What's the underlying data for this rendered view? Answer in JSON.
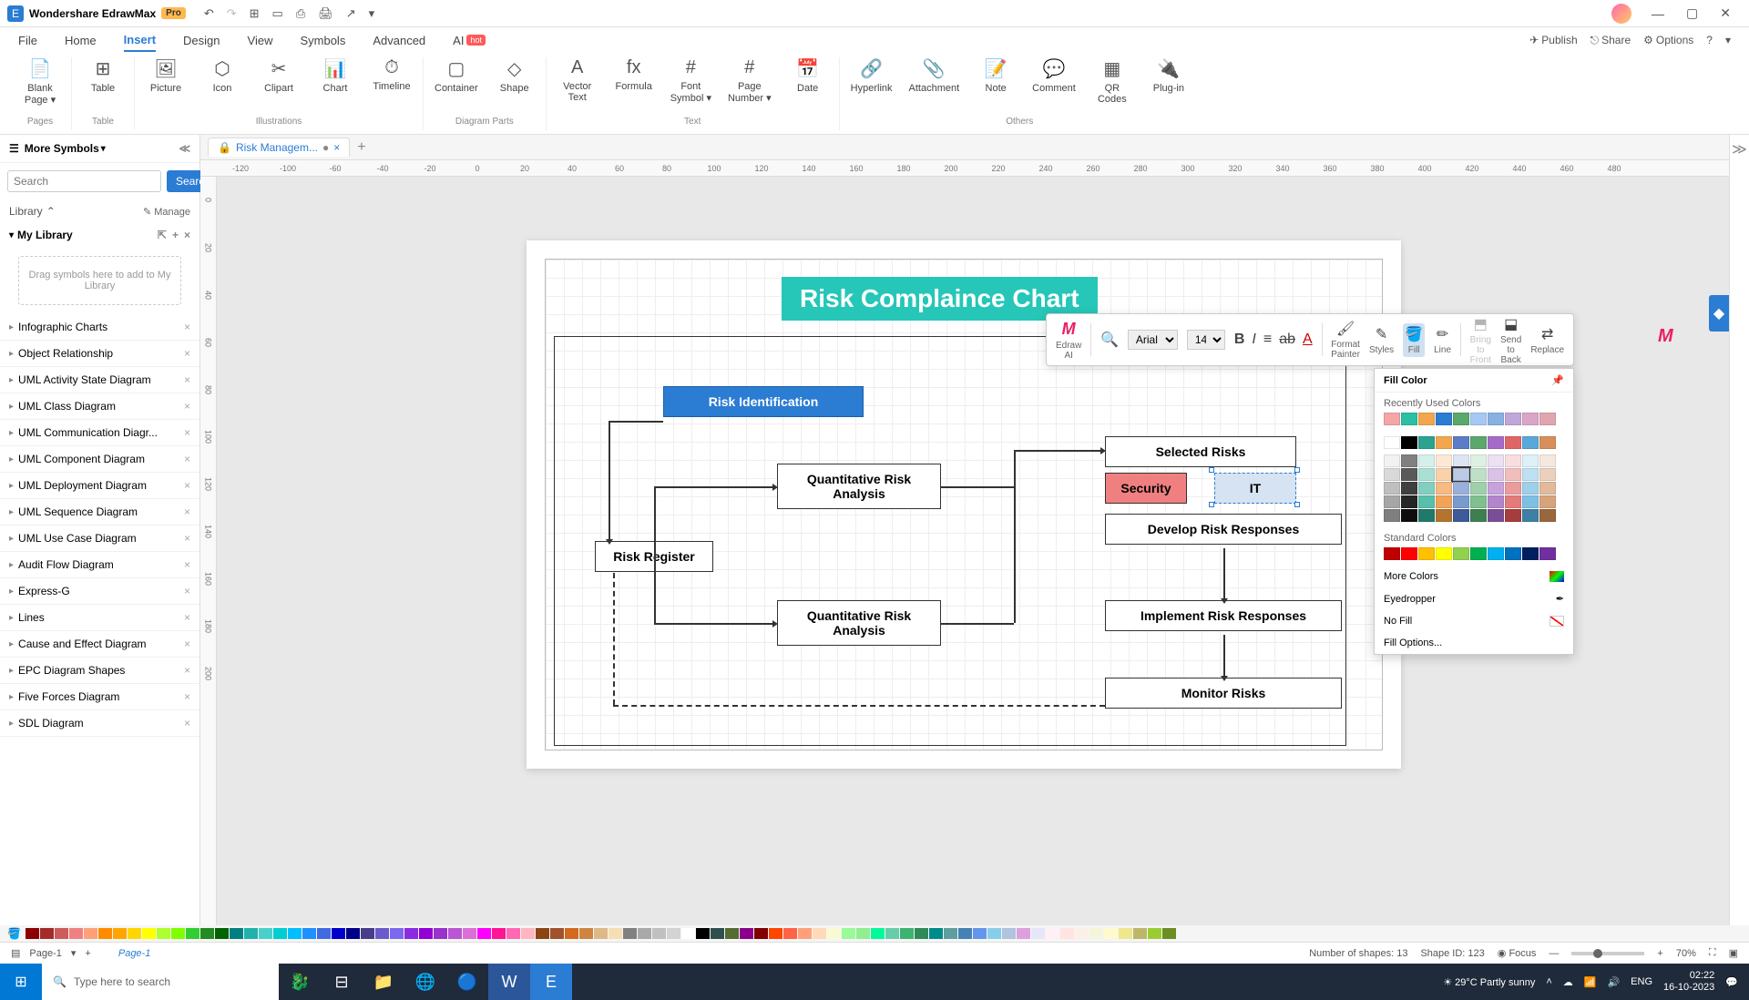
{
  "app": {
    "name": "Wondershare EdrawMax",
    "pro": "Pro"
  },
  "titlebar_icons": [
    "↶",
    "↷",
    "⊞",
    "▭",
    "⎙",
    "🖨",
    "↗",
    "▾"
  ],
  "menu": {
    "tabs": [
      "File",
      "Home",
      "Insert",
      "Design",
      "View",
      "Symbols",
      "Advanced"
    ],
    "active": "Insert",
    "ai_label": "AI",
    "hot": "hot",
    "right": {
      "publish": "Publish",
      "share": "Share",
      "options": "Options"
    }
  },
  "ribbon": {
    "groups": [
      {
        "label": "Pages",
        "items": [
          {
            "icon": "📄",
            "label": "Blank\nPage ▾"
          }
        ]
      },
      {
        "label": "Table",
        "items": [
          {
            "icon": "⊞",
            "label": "Table"
          }
        ]
      },
      {
        "label": "Illustrations",
        "items": [
          {
            "icon": "🖼",
            "label": "Picture"
          },
          {
            "icon": "⬡",
            "label": "Icon"
          },
          {
            "icon": "✂",
            "label": "Clipart"
          },
          {
            "icon": "📊",
            "label": "Chart"
          },
          {
            "icon": "⏱",
            "label": "Timeline"
          }
        ]
      },
      {
        "label": "Diagram Parts",
        "items": [
          {
            "icon": "▢",
            "label": "Container"
          },
          {
            "icon": "◇",
            "label": "Shape"
          }
        ]
      },
      {
        "label": "Text",
        "items": [
          {
            "icon": "A",
            "label": "Vector\nText"
          },
          {
            "icon": "fx",
            "label": "Formula"
          },
          {
            "icon": "#",
            "label": "Font\nSymbol ▾"
          },
          {
            "icon": "#",
            "label": "Page\nNumber ▾"
          },
          {
            "icon": "📅",
            "label": "Date"
          }
        ]
      },
      {
        "label": "Others",
        "items": [
          {
            "icon": "🔗",
            "label": "Hyperlink"
          },
          {
            "icon": "📎",
            "label": "Attachment"
          },
          {
            "icon": "📝",
            "label": "Note"
          },
          {
            "icon": "💬",
            "label": "Comment"
          },
          {
            "icon": "▦",
            "label": "QR\nCodes"
          },
          {
            "icon": "🔌",
            "label": "Plug-in"
          }
        ]
      }
    ]
  },
  "sidebar": {
    "title": "More Symbols",
    "search_placeholder": "Search",
    "search_btn": "Search",
    "library_label": "Library",
    "manage": "Manage",
    "mylib": "My Library",
    "dropzone": "Drag symbols here to add to My Library",
    "list": [
      "Infographic Charts",
      "Object Relationship",
      "UML Activity State Diagram",
      "UML Class Diagram",
      "UML Communication Diagr...",
      "UML Component Diagram",
      "UML Deployment Diagram",
      "UML Sequence Diagram",
      "UML Use Case Diagram",
      "Audit Flow Diagram",
      "Express-G",
      "Lines",
      "Cause and Effect Diagram",
      "EPC Diagram Shapes",
      "Five Forces Diagram",
      "SDL Diagram"
    ]
  },
  "doc": {
    "tab": "Risk Managem...",
    "page_name": "Page-1"
  },
  "ruler_h": [
    "-120",
    "-100",
    "-60",
    "-40",
    "-20",
    "0",
    "20",
    "40",
    "60",
    "80",
    "100",
    "120",
    "140",
    "160",
    "180",
    "200",
    "220",
    "240",
    "260",
    "280",
    "300",
    "320",
    "340",
    "360",
    "380",
    "400",
    "420",
    "440",
    "460",
    "480"
  ],
  "ruler_v": [
    "0",
    "20",
    "40",
    "60",
    "80",
    "100",
    "120",
    "140",
    "160",
    "180",
    "200"
  ],
  "chart": {
    "title": "Risk Complaince Chart",
    "boxes": {
      "risk_id": "Risk Identification",
      "qra1": "Quantitative Risk\nAnalysis",
      "qra2": "Quantitative Risk\nAnalysis",
      "register": "Risk Register",
      "selected": "Selected Risks",
      "security": "Security",
      "it": "IT",
      "develop": "Develop Risk Responses",
      "implement": "Implement Risk Responses",
      "monitor": "Monitor Risks"
    }
  },
  "float": {
    "edraw": "Edraw AI",
    "font": "Arial",
    "size": "14",
    "format_painter": "Format\nPainter",
    "styles": "Styles",
    "fill": "Fill",
    "line": "Line",
    "bring": "Bring to\nFront",
    "send": "Send to\nBack",
    "replace": "Replace"
  },
  "fillpanel": {
    "title": "Fill Color",
    "recent": "Recently Used Colors",
    "recent_colors": [
      "#f4a6a6",
      "#2bbfa3",
      "#f4a64d",
      "#2b7cd3",
      "#5aa86b",
      "#a6c8f4",
      "#88b0e0",
      "#c0a6d9",
      "#d9a6c8",
      "#e0a6b0"
    ],
    "theme_row1": [
      "#ffffff",
      "#000000",
      "#2ba38f",
      "#f4a64d",
      "#5b7cc8",
      "#5aa86b",
      "#a66bc8",
      "#e06666",
      "#5aa8d9",
      "#d98f5a"
    ],
    "theme_shades": [
      [
        "#f2f2f2",
        "#808080",
        "#d5f0ea",
        "#fce8d5",
        "#dde4f2",
        "#def0e2",
        "#ece0f2",
        "#f8dede",
        "#def0f8",
        "#f5e8de"
      ],
      [
        "#d9d9d9",
        "#595959",
        "#abdfd5",
        "#f9d1ab",
        "#bccae5",
        "#bee0c6",
        "#d9c2e5",
        "#f1bdbd",
        "#bee0f1",
        "#ebd1bd"
      ],
      [
        "#bfbfbf",
        "#404040",
        "#82cfc0",
        "#f6ba82",
        "#9aafda",
        "#9ed0aa",
        "#c6a3da",
        "#ea9c9c",
        "#9ed0ea",
        "#e1ba9c"
      ],
      [
        "#a6a6a6",
        "#262626",
        "#58bfab",
        "#f3a358",
        "#789acc",
        "#7ec08e",
        "#b385cc",
        "#e37b7b",
        "#7ec0e3",
        "#d7a37b"
      ],
      [
        "#7f7f7f",
        "#0d0d0d",
        "#1f7a6b",
        "#b3742d",
        "#3d5a99",
        "#3d8050",
        "#7a4d99",
        "#a63d3d",
        "#3d80a6",
        "#99663d"
      ]
    ],
    "standard": "Standard Colors",
    "standard_colors": [
      "#c00000",
      "#ff0000",
      "#ffc000",
      "#ffff00",
      "#92d050",
      "#00b050",
      "#00b0f0",
      "#0070c0",
      "#002060",
      "#7030a0"
    ],
    "more": "More Colors",
    "eyedropper": "Eyedropper",
    "nofill": "No Fill",
    "options": "Fill Options..."
  },
  "colorbar": [
    "#8b0000",
    "#a52a2a",
    "#cd5c5c",
    "#f08080",
    "#ffa07a",
    "#ff8c00",
    "#ffa500",
    "#ffd700",
    "#ffff00",
    "#adff2f",
    "#7fff00",
    "#32cd32",
    "#228b22",
    "#006400",
    "#008080",
    "#20b2aa",
    "#48d1cc",
    "#00ced1",
    "#00bfff",
    "#1e90ff",
    "#4169e1",
    "#0000cd",
    "#00008b",
    "#483d8b",
    "#6a5acd",
    "#7b68ee",
    "#8a2be2",
    "#9400d3",
    "#9932cc",
    "#ba55d3",
    "#da70d6",
    "#ff00ff",
    "#ff1493",
    "#ff69b4",
    "#ffb6c1",
    "#8b4513",
    "#a0522d",
    "#d2691e",
    "#cd853f",
    "#deb887",
    "#f5deb3",
    "#808080",
    "#a9a9a9",
    "#c0c0c0",
    "#d3d3d3",
    "#ffffff",
    "#000000",
    "#2f4f4f",
    "#556b2f",
    "#8b008b",
    "#800000",
    "#ff4500",
    "#ff6347",
    "#ffa07a",
    "#ffdab9",
    "#fafad2",
    "#98fb98",
    "#90ee90",
    "#00fa9a",
    "#66cdaa",
    "#3cb371",
    "#2e8b57",
    "#008b8b",
    "#5f9ea0",
    "#4682b4",
    "#6495ed",
    "#87ceeb",
    "#b0c4de",
    "#dda0dd",
    "#e6e6fa",
    "#fff0f5",
    "#ffe4e1",
    "#faf0e6",
    "#f5f5dc",
    "#fffacd",
    "#f0e68c",
    "#bdb76b",
    "#9acd32",
    "#6b8e23"
  ],
  "status": {
    "page_sel": "Page-1",
    "shapes": "Number of shapes: 13",
    "shape_id": "Shape ID: 123",
    "focus": "Focus",
    "zoom": "70%"
  },
  "taskbar": {
    "search": "Type here to search",
    "weather": "29°C  Partly sunny",
    "lang": "ENG",
    "time": "02:22",
    "date": "16-10-2023"
  }
}
